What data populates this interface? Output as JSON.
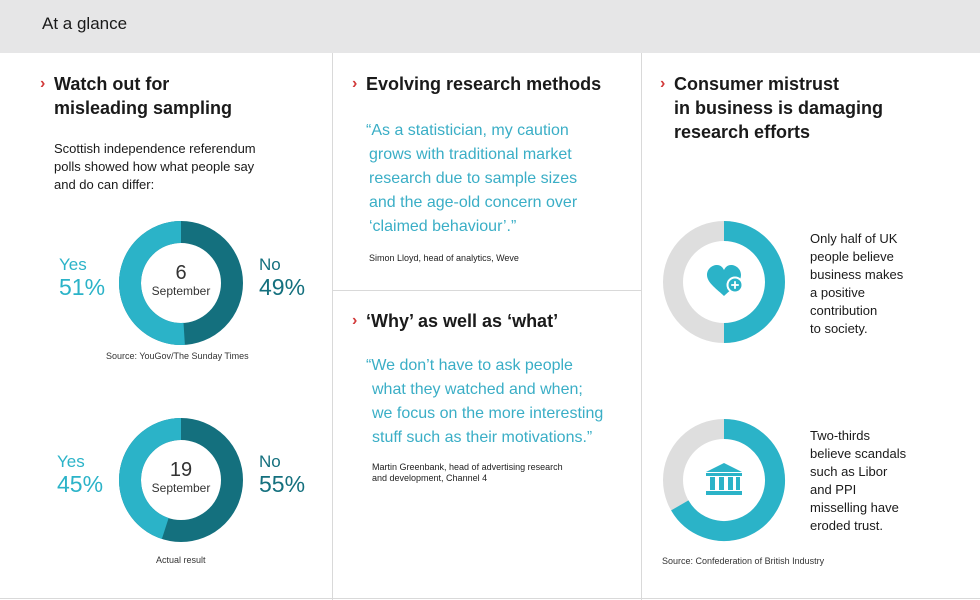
{
  "header": {
    "title": "At a glance"
  },
  "colors": {
    "teal_light": "#2bb3c8",
    "teal_dark": "#14707e",
    "grey_ring": "#dedede",
    "accent_red": "#d23a3a"
  },
  "col1": {
    "heading": [
      "Watch out for",
      "misleading sampling"
    ],
    "intro": [
      "Scottish independence referendum",
      "polls showed how what people say",
      "and do can differ:"
    ],
    "polls": [
      {
        "day": "6",
        "month": "September",
        "yes_label": "Yes",
        "yes_pct": "51%",
        "no_label": "No",
        "no_pct": "49%",
        "yes_value": 51,
        "no_value": 49,
        "source": "Source: YouGov/The Sunday Times"
      },
      {
        "day": "19",
        "month": "September",
        "yes_label": "Yes",
        "yes_pct": "45%",
        "no_label": "No",
        "no_pct": "55%",
        "yes_value": 45,
        "no_value": 55,
        "source": "Actual result"
      }
    ]
  },
  "col2": {
    "section1": {
      "heading": "Evolving research methods",
      "quote": [
        "“As a statistician, my caution",
        "grows with traditional market",
        "research due to sample sizes",
        "and the age-old concern over",
        "‘claimed behaviour’.”"
      ],
      "attribution": [
        "Simon Lloyd, head of analytics, Weve"
      ]
    },
    "section2": {
      "heading": "‘Why’ as well as ‘what’",
      "quote": [
        "“We don’t have to ask people",
        "what they watched and when;",
        "we focus on the more interesting",
        "stuff such as their motivations.”"
      ],
      "attribution": [
        "Martin Greenbank, head of advertising research",
        "and development, Channel 4"
      ]
    }
  },
  "col3": {
    "heading": [
      "Consumer mistrust",
      "in business is damaging",
      "research efforts"
    ],
    "stats": [
      {
        "icon": "heart-plus-icon",
        "value": 50,
        "text": [
          "Only half of UK",
          "people believe",
          "business makes",
          "a positive",
          "contribution",
          "to society."
        ]
      },
      {
        "icon": "bank-icon",
        "value": 66.7,
        "text": [
          "Two-thirds",
          "believe scandals",
          "such as Libor",
          "and PPI",
          "misselling have",
          "eroded trust."
        ]
      }
    ],
    "source": "Source: Confederation of British Industry"
  }
}
